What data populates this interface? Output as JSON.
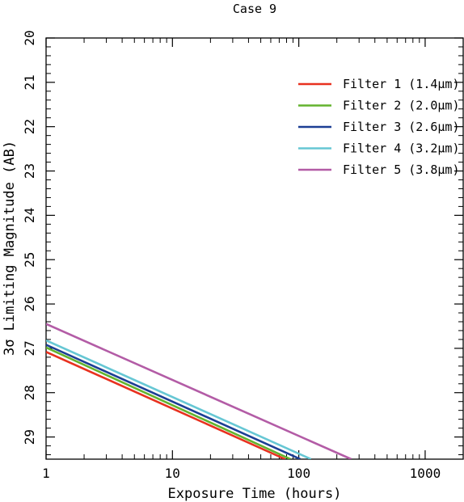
{
  "chart_data": {
    "type": "line",
    "title": "Case 9",
    "xlabel": "Exposure Time (hours)",
    "ylabel": "3σ Limiting Magnitude (AB)",
    "xscale": "log",
    "xlim": [
      1,
      2000
    ],
    "ylim": [
      29.5,
      20
    ],
    "y_inverted": true,
    "xticks": [
      1,
      10,
      100,
      1000
    ],
    "xtick_labels": [
      "1",
      "10",
      "100",
      "1000"
    ],
    "yticks": [
      20,
      21,
      22,
      23,
      24,
      25,
      26,
      27,
      28,
      29
    ],
    "ytick_labels": [
      "20",
      "21",
      "22",
      "23",
      "24",
      "25",
      "26",
      "27",
      "28",
      "29"
    ],
    "legend_position": "top-right",
    "grid": false,
    "series": [
      {
        "name": "Filter 1 (1.4μm)",
        "color": "#e8311f",
        "x": [
          1,
          78
        ],
        "y": [
          27.08,
          29.5
        ]
      },
      {
        "name": "Filter 2 (2.0μm)",
        "color": "#63b32e",
        "x": [
          1,
          86
        ],
        "y": [
          26.98,
          29.5
        ]
      },
      {
        "name": "Filter 3 (2.6μm)",
        "color": "#1c3f94",
        "x": [
          1,
          103
        ],
        "y": [
          26.92,
          29.5
        ]
      },
      {
        "name": "Filter 4 (3.2μm)",
        "color": "#66c7d4",
        "x": [
          1,
          125
        ],
        "y": [
          26.82,
          29.5
        ]
      },
      {
        "name": "Filter 5 (3.8μm)",
        "color": "#b35ca6",
        "x": [
          1,
          260
        ],
        "y": [
          26.45,
          29.5
        ]
      }
    ]
  }
}
